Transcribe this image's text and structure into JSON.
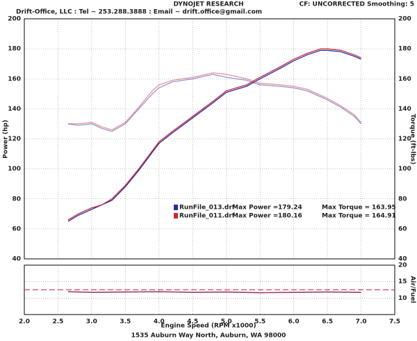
{
  "header": {
    "company": "DYNOJET RESEARCH",
    "contact": "Drift-Office, LLC : Tel ~ 253.288.3888 : Email ~ drift.office@gmail.com",
    "settings": "CF: UNCORRECTED  Smoothing: 5",
    "footer": "1535 Auburn Way North, Auburn, WA 98000"
  },
  "chart_data": [
    {
      "type": "line",
      "ylabel": "Power (hp)",
      "y2label": "Torque (ft-lbs)",
      "xlim": [
        2.0,
        7.5
      ],
      "xticks": [
        2,
        2.5,
        3,
        3.5,
        4,
        4.5,
        5,
        5.5,
        6,
        6.5,
        7,
        7.5
      ],
      "ylim": [
        40,
        200
      ],
      "yticks": [
        40,
        60,
        80,
        100,
        120,
        140,
        160,
        180,
        200
      ],
      "y2lim": [
        40,
        200
      ],
      "y2ticks": [
        40,
        60,
        80,
        100,
        120,
        140,
        160,
        180,
        200
      ],
      "grid": true,
      "max_power_label": "Max Power =",
      "max_torque_label": "Max Torque =",
      "x": [
        2.65,
        2.8,
        3.0,
        3.15,
        3.3,
        3.5,
        3.7,
        3.9,
        4.0,
        4.2,
        4.5,
        4.8,
        5.0,
        5.3,
        5.5,
        5.8,
        6.0,
        6.2,
        6.4,
        6.5,
        6.7,
        6.9,
        7.0
      ],
      "runs": [
        {
          "name": "RunFile_013.drf",
          "color": "#2b2b9e",
          "max_power": 179.24,
          "max_torque": 163.95,
          "power": [
            65,
            69,
            73,
            76,
            79,
            88,
            99,
            111,
            117,
            124,
            134,
            144,
            151,
            155,
            160,
            167,
            172,
            176,
            179,
            179,
            178,
            175,
            173
          ],
          "torque": [
            130,
            129,
            130,
            127,
            125,
            130,
            140,
            150,
            154,
            158,
            160,
            163,
            161,
            159,
            156,
            155,
            154,
            152,
            148,
            146,
            141,
            135,
            130
          ]
        },
        {
          "name": "RunFile_011.drf",
          "color": "#c8283c",
          "max_power": 180.16,
          "max_torque": 164.91,
          "power": [
            66,
            70,
            74,
            76,
            80,
            89,
            100,
            112,
            118,
            125,
            135,
            145,
            152,
            156,
            161,
            168,
            173,
            177,
            180,
            180,
            179,
            176,
            174
          ],
          "torque": [
            130,
            130,
            131,
            128,
            126,
            131,
            141,
            152,
            156,
            159,
            161,
            164,
            163,
            160,
            157,
            156,
            155,
            153,
            149,
            147,
            142,
            136,
            131
          ]
        }
      ]
    },
    {
      "type": "line",
      "xlabel": "Engine Speed (RPM x1000)",
      "y2label": "Air/Fuel",
      "xlim": [
        2.0,
        7.5
      ],
      "xticks": [
        {
          "value": 2,
          "label": "2.0"
        },
        2.5,
        {
          "value": 3,
          "label": "3.0"
        },
        3.5,
        {
          "value": 4,
          "label": "4.0"
        },
        4.5,
        {
          "value": 5,
          "label": "5.0"
        },
        5.5,
        {
          "value": 6,
          "label": "6.0"
        },
        6.5,
        {
          "value": 7,
          "label": "7.0"
        },
        7.5
      ],
      "y2lim": [
        5,
        20
      ],
      "y2ticks": [
        10,
        15,
        20
      ],
      "grid": true,
      "target": 12.5,
      "target_color": "#c8283c",
      "x": [
        2.65,
        3.0,
        3.5,
        4.0,
        4.5,
        5.0,
        5.5,
        6.0,
        6.5,
        7.0
      ],
      "series": [
        {
          "color": "#2b2b9e",
          "values": [
            11.9,
            11.7,
            11.8,
            11.9,
            11.7,
            11.8,
            11.6,
            11.7,
            11.8,
            11.7
          ]
        },
        {
          "color": "#c8283c",
          "values": [
            12.0,
            11.8,
            11.9,
            12.0,
            11.8,
            11.9,
            11.7,
            11.8,
            11.9,
            11.8
          ]
        }
      ]
    }
  ]
}
